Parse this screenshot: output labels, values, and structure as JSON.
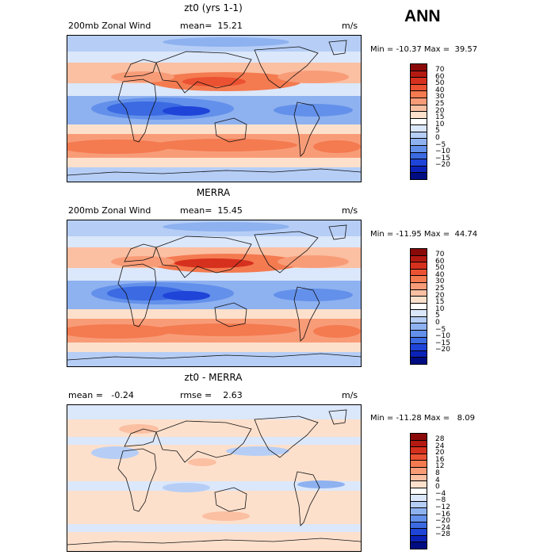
{
  "season": "ANN",
  "panels": [
    {
      "title": "zt0 (yrs 1-1)",
      "left_label": "200mb Zonal Wind",
      "mid_label": "mean=  15.21",
      "units": "m/s",
      "minmax": "Min = -10.37 Max =  39.57",
      "colorbar": {
        "labels": [
          "70",
          "60",
          "50",
          "40",
          "30",
          "25",
          "20",
          "15",
          "10",
          "5",
          "0",
          "−5",
          "−10",
          "−15",
          "−20"
        ],
        "colors": [
          "#8a0a0a",
          "#b51a12",
          "#d6301e",
          "#eb5232",
          "#f47a50",
          "#f89c78",
          "#fbbfa2",
          "#fde0cc",
          "#ffffff",
          "#dbe7fa",
          "#b6cef6",
          "#8eb1f0",
          "#6390ea",
          "#3b6ae2",
          "#1f44d8",
          "#0b22b8",
          "#000c82"
        ]
      },
      "field_style": "model"
    },
    {
      "title": "MERRA",
      "left_label": "200mb Zonal Wind",
      "mid_label": "mean=  15.45",
      "units": "m/s",
      "minmax": "Min = -11.95 Max =  44.74",
      "colorbar": {
        "labels": [
          "70",
          "60",
          "50",
          "40",
          "30",
          "25",
          "20",
          "15",
          "10",
          "5",
          "0",
          "−5",
          "−10",
          "−15",
          "−20"
        ],
        "colors": [
          "#8a0a0a",
          "#b51a12",
          "#d6301e",
          "#eb5232",
          "#f47a50",
          "#f89c78",
          "#fbbfa2",
          "#fde0cc",
          "#ffffff",
          "#dbe7fa",
          "#b6cef6",
          "#8eb1f0",
          "#6390ea",
          "#3b6ae2",
          "#1f44d8",
          "#0b22b8",
          "#000c82"
        ]
      },
      "field_style": "obs"
    },
    {
      "title": "zt0 - MERRA",
      "left_label": "mean =   -0.24",
      "mid_label": "rmse =    2.63",
      "units": "m/s",
      "minmax": "Min = -11.28 Max =   8.09",
      "colorbar": {
        "labels": [
          "28",
          "24",
          "20",
          "16",
          "12",
          "8",
          "4",
          "0",
          "−4",
          "−8",
          "−12",
          "−16",
          "−20",
          "−24",
          "−28"
        ],
        "colors": [
          "#8a0a0a",
          "#b51a12",
          "#d6301e",
          "#eb5232",
          "#f47a50",
          "#f89c78",
          "#fbbfa2",
          "#fde0cc",
          "#ffffff",
          "#dbe7fa",
          "#b6cef6",
          "#8eb1f0",
          "#6390ea",
          "#3b6ae2",
          "#1f44d8",
          "#0b22b8",
          "#000c82"
        ]
      },
      "field_style": "diff"
    }
  ]
}
